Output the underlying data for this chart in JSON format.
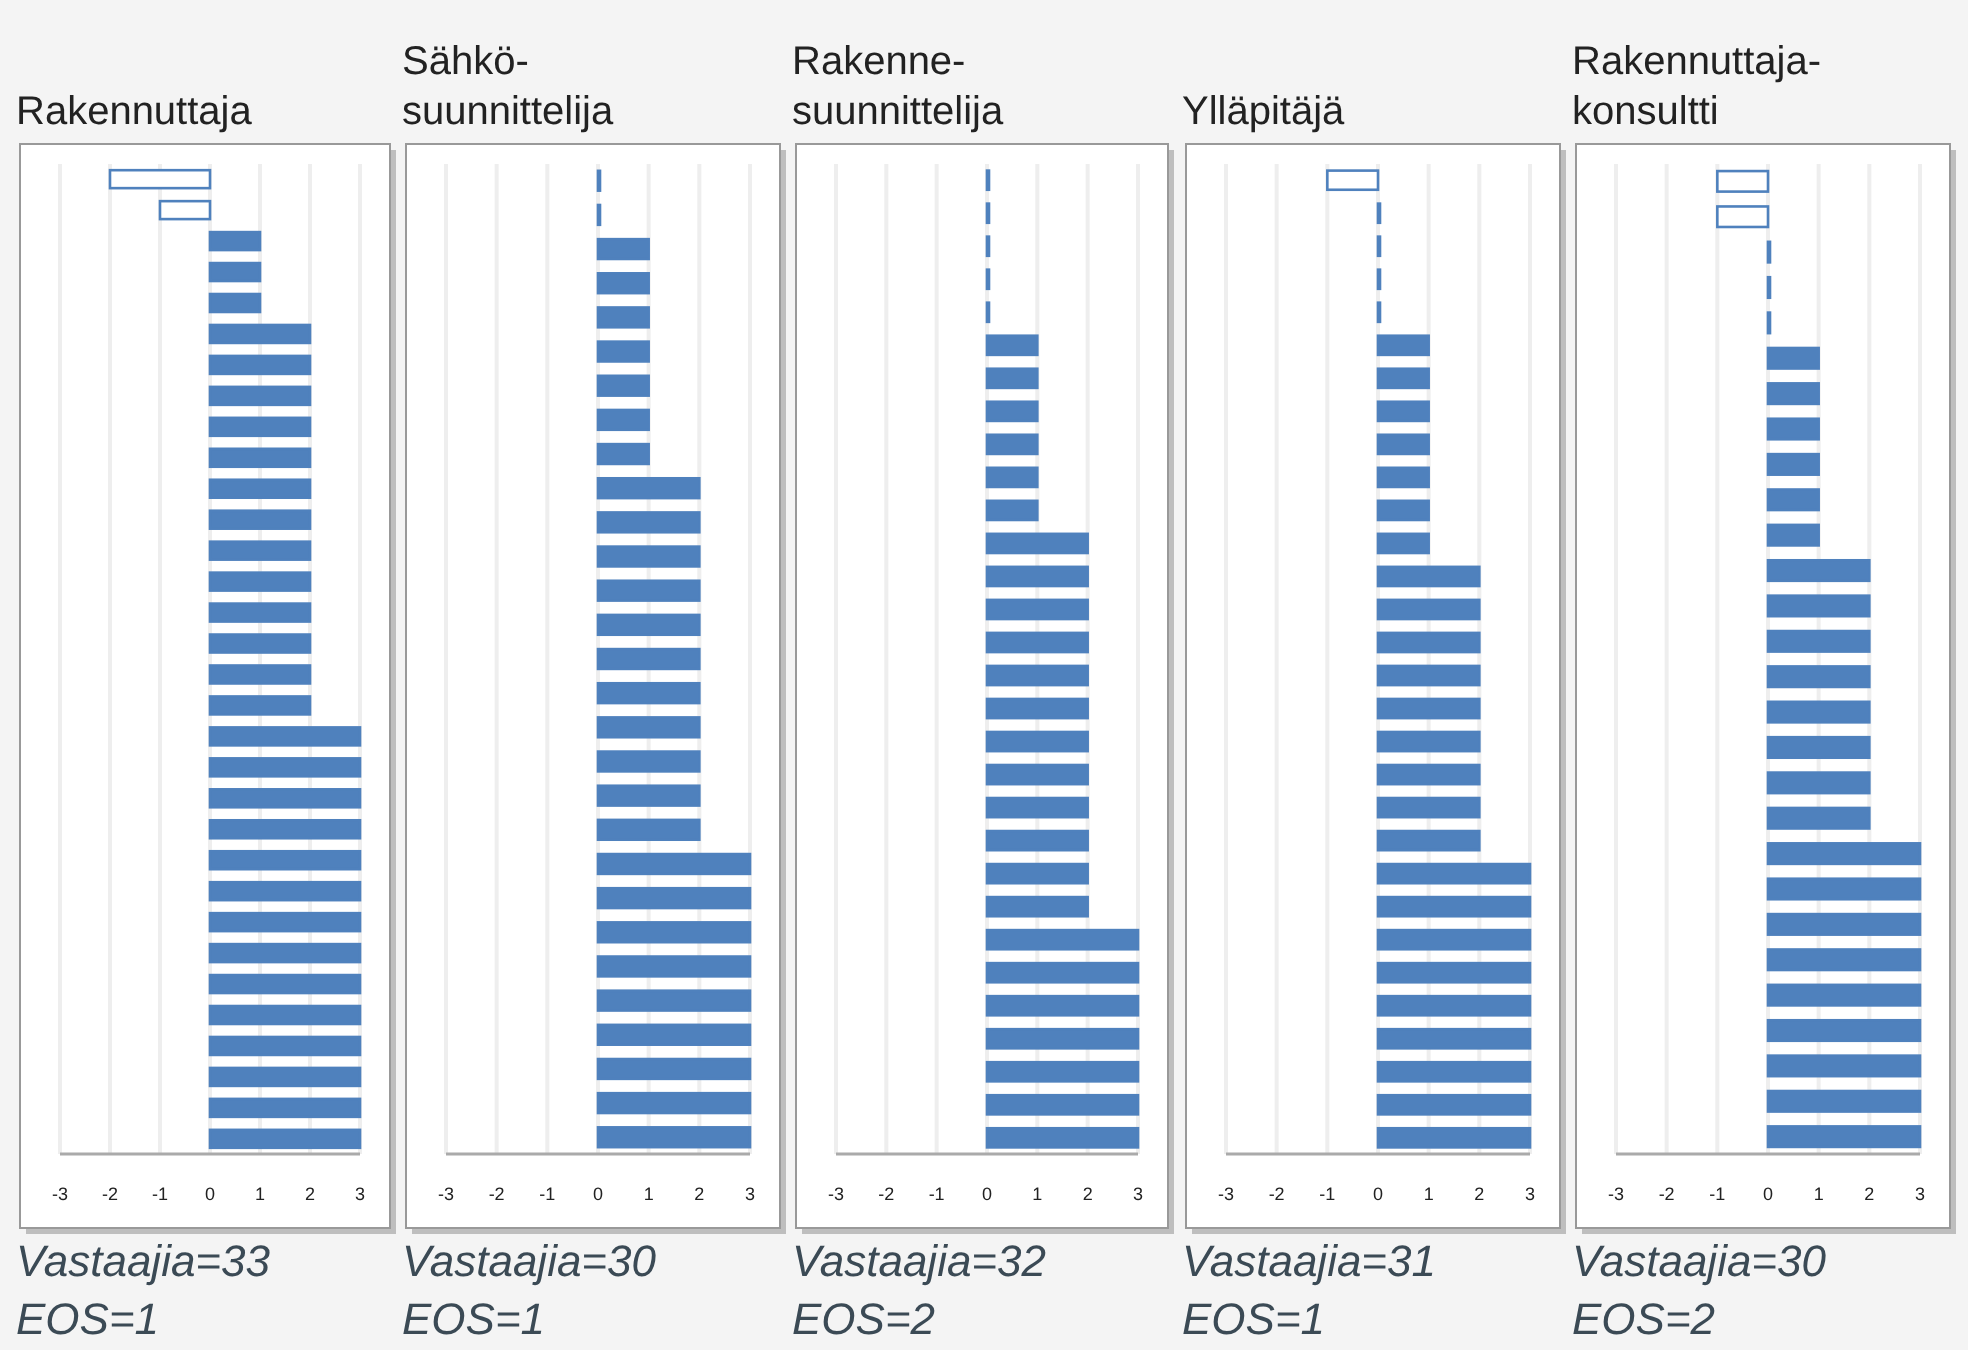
{
  "chart_data": [
    {
      "type": "bar",
      "orientation": "horizontal",
      "title": "Rakennuttaja",
      "categories": [
        null,
        null,
        null,
        null,
        null,
        null,
        null,
        null,
        null,
        null,
        null,
        null,
        null,
        null,
        null,
        null,
        null,
        null,
        null,
        null,
        null,
        null,
        null,
        null,
        null,
        null,
        null,
        null,
        null,
        null,
        null,
        null
      ],
      "values": [
        -2,
        -1,
        1,
        1,
        1,
        2,
        2,
        2,
        2,
        2,
        2,
        2,
        2,
        2,
        2,
        2,
        2,
        2,
        3,
        3,
        3,
        3,
        3,
        3,
        3,
        3,
        3,
        3,
        3,
        3,
        3,
        3
      ],
      "color": "#4f81bd",
      "colors": [
        "#ffffff",
        "#ffffff",
        "#4f81bd",
        "#4f81bd",
        "#4f81bd",
        "#4f81bd",
        "#4f81bd",
        "#4f81bd",
        "#4f81bd",
        "#4f81bd",
        "#4f81bd",
        "#4f81bd",
        "#4f81bd",
        "#4f81bd",
        "#4f81bd",
        "#4f81bd",
        "#4f81bd",
        "#4f81bd",
        "#4f81bd",
        "#4f81bd",
        "#4f81bd",
        "#4f81bd",
        "#4f81bd",
        "#4f81bd",
        "#4f81bd",
        "#4f81bd",
        "#4f81bd",
        "#4f81bd",
        "#4f81bd",
        "#4f81bd",
        "#4f81bd",
        "#4f81bd"
      ],
      "xlim": [
        -3,
        3
      ],
      "xticks": [
        -3,
        -2,
        -1,
        0,
        1,
        2,
        3
      ],
      "grid": "x",
      "tick_labels": "x",
      "annotations": [
        "Vastaajia=33",
        "EOS=1"
      ]
    },
    {
      "type": "bar",
      "orientation": "horizontal",
      "title": "Sähkö-\nsuunnittelija",
      "categories": [
        null,
        null,
        null,
        null,
        null,
        null,
        null,
        null,
        null,
        null,
        null,
        null,
        null,
        null,
        null,
        null,
        null,
        null,
        null,
        null,
        null,
        null,
        null,
        null,
        null,
        null,
        null,
        null,
        null
      ],
      "values": [
        0,
        0,
        1,
        1,
        1,
        1,
        1,
        1,
        1,
        2,
        2,
        2,
        2,
        2,
        2,
        2,
        2,
        2,
        2,
        2,
        3,
        3,
        3,
        3,
        3,
        3,
        3,
        3,
        3
      ],
      "color": "#4f81bd",
      "colors": [
        "#4f81bd",
        "#4f81bd",
        "#4f81bd",
        "#4f81bd",
        "#4f81bd",
        "#4f81bd",
        "#4f81bd",
        "#4f81bd",
        "#4f81bd",
        "#4f81bd",
        "#4f81bd",
        "#4f81bd",
        "#4f81bd",
        "#4f81bd",
        "#4f81bd",
        "#4f81bd",
        "#4f81bd",
        "#4f81bd",
        "#4f81bd",
        "#4f81bd",
        "#4f81bd",
        "#4f81bd",
        "#4f81bd",
        "#4f81bd",
        "#4f81bd",
        "#4f81bd",
        "#4f81bd",
        "#4f81bd",
        "#4f81bd"
      ],
      "xlim": [
        -3,
        3
      ],
      "xticks": [
        -3,
        -2,
        -1,
        0,
        1,
        2,
        3
      ],
      "grid": "x",
      "tick_labels": "x",
      "annotations": [
        "Vastaajia=30",
        "EOS=1"
      ]
    },
    {
      "type": "bar",
      "orientation": "horizontal",
      "title": "Rakenne-\nsuunnittelija",
      "categories": [
        null,
        null,
        null,
        null,
        null,
        null,
        null,
        null,
        null,
        null,
        null,
        null,
        null,
        null,
        null,
        null,
        null,
        null,
        null,
        null,
        null,
        null,
        null,
        null,
        null,
        null,
        null,
        null,
        null,
        null
      ],
      "values": [
        0,
        0,
        0,
        0,
        0,
        1,
        1,
        1,
        1,
        1,
        1,
        2,
        2,
        2,
        2,
        2,
        2,
        2,
        2,
        2,
        2,
        2,
        2,
        3,
        3,
        3,
        3,
        3,
        3,
        3
      ],
      "color": "#4f81bd",
      "colors": [
        "#4f81bd",
        "#4f81bd",
        "#4f81bd",
        "#4f81bd",
        "#4f81bd",
        "#4f81bd",
        "#4f81bd",
        "#4f81bd",
        "#4f81bd",
        "#4f81bd",
        "#4f81bd",
        "#4f81bd",
        "#4f81bd",
        "#4f81bd",
        "#4f81bd",
        "#4f81bd",
        "#4f81bd",
        "#4f81bd",
        "#4f81bd",
        "#4f81bd",
        "#4f81bd",
        "#4f81bd",
        "#4f81bd",
        "#4f81bd",
        "#4f81bd",
        "#4f81bd",
        "#4f81bd",
        "#4f81bd",
        "#4f81bd",
        "#4f81bd"
      ],
      "xlim": [
        -3,
        3
      ],
      "xticks": [
        -3,
        -2,
        -1,
        0,
        1,
        2,
        3
      ],
      "grid": "x",
      "tick_labels": "x",
      "annotations": [
        "Vastaajia=32",
        "EOS=2"
      ]
    },
    {
      "type": "bar",
      "orientation": "horizontal",
      "title": "Ylläpitäjä",
      "categories": [
        null,
        null,
        null,
        null,
        null,
        null,
        null,
        null,
        null,
        null,
        null,
        null,
        null,
        null,
        null,
        null,
        null,
        null,
        null,
        null,
        null,
        null,
        null,
        null,
        null,
        null,
        null,
        null,
        null,
        null
      ],
      "values": [
        -1,
        0,
        0,
        0,
        0,
        1,
        1,
        1,
        1,
        1,
        1,
        1,
        2,
        2,
        2,
        2,
        2,
        2,
        2,
        2,
        2,
        3,
        3,
        3,
        3,
        3,
        3,
        3,
        3,
        3
      ],
      "color": "#4f81bd",
      "colors": [
        "#ffffff",
        "#4f81bd",
        "#4f81bd",
        "#4f81bd",
        "#4f81bd",
        "#4f81bd",
        "#4f81bd",
        "#4f81bd",
        "#4f81bd",
        "#4f81bd",
        "#4f81bd",
        "#4f81bd",
        "#4f81bd",
        "#4f81bd",
        "#4f81bd",
        "#4f81bd",
        "#4f81bd",
        "#4f81bd",
        "#4f81bd",
        "#4f81bd",
        "#4f81bd",
        "#4f81bd",
        "#4f81bd",
        "#4f81bd",
        "#4f81bd",
        "#4f81bd",
        "#4f81bd",
        "#4f81bd",
        "#4f81bd",
        "#4f81bd"
      ],
      "xlim": [
        -3,
        3
      ],
      "xticks": [
        -3,
        -2,
        -1,
        0,
        1,
        2,
        3
      ],
      "grid": "x",
      "tick_labels": "x",
      "annotations": [
        "Vastaajia=31",
        "EOS=1"
      ]
    },
    {
      "type": "bar",
      "orientation": "horizontal",
      "title": "Rakennuttaja-\nkonsultti",
      "categories": [
        null,
        null,
        null,
        null,
        null,
        null,
        null,
        null,
        null,
        null,
        null,
        null,
        null,
        null,
        null,
        null,
        null,
        null,
        null,
        null,
        null,
        null,
        null,
        null,
        null,
        null,
        null,
        null
      ],
      "values": [
        -1,
        -1,
        0,
        0,
        0,
        1,
        1,
        1,
        1,
        1,
        1,
        2,
        2,
        2,
        2,
        2,
        2,
        2,
        2,
        3,
        3,
        3,
        3,
        3,
        3,
        3,
        3,
        3
      ],
      "color": "#4f81bd",
      "colors": [
        "#ffffff",
        "#ffffff",
        "#4f81bd",
        "#4f81bd",
        "#4f81bd",
        "#4f81bd",
        "#4f81bd",
        "#4f81bd",
        "#4f81bd",
        "#4f81bd",
        "#4f81bd",
        "#4f81bd",
        "#4f81bd",
        "#4f81bd",
        "#4f81bd",
        "#4f81bd",
        "#4f81bd",
        "#4f81bd",
        "#4f81bd",
        "#4f81bd",
        "#4f81bd",
        "#4f81bd",
        "#4f81bd",
        "#4f81bd",
        "#4f81bd",
        "#4f81bd",
        "#4f81bd",
        "#4f81bd"
      ],
      "xlim": [
        -3,
        3
      ],
      "xticks": [
        -3,
        -2,
        -1,
        0,
        1,
        2,
        3
      ],
      "grid": "x",
      "tick_labels": "x",
      "annotations": [
        "Vastaajia=30",
        "EOS=2"
      ]
    }
  ]
}
